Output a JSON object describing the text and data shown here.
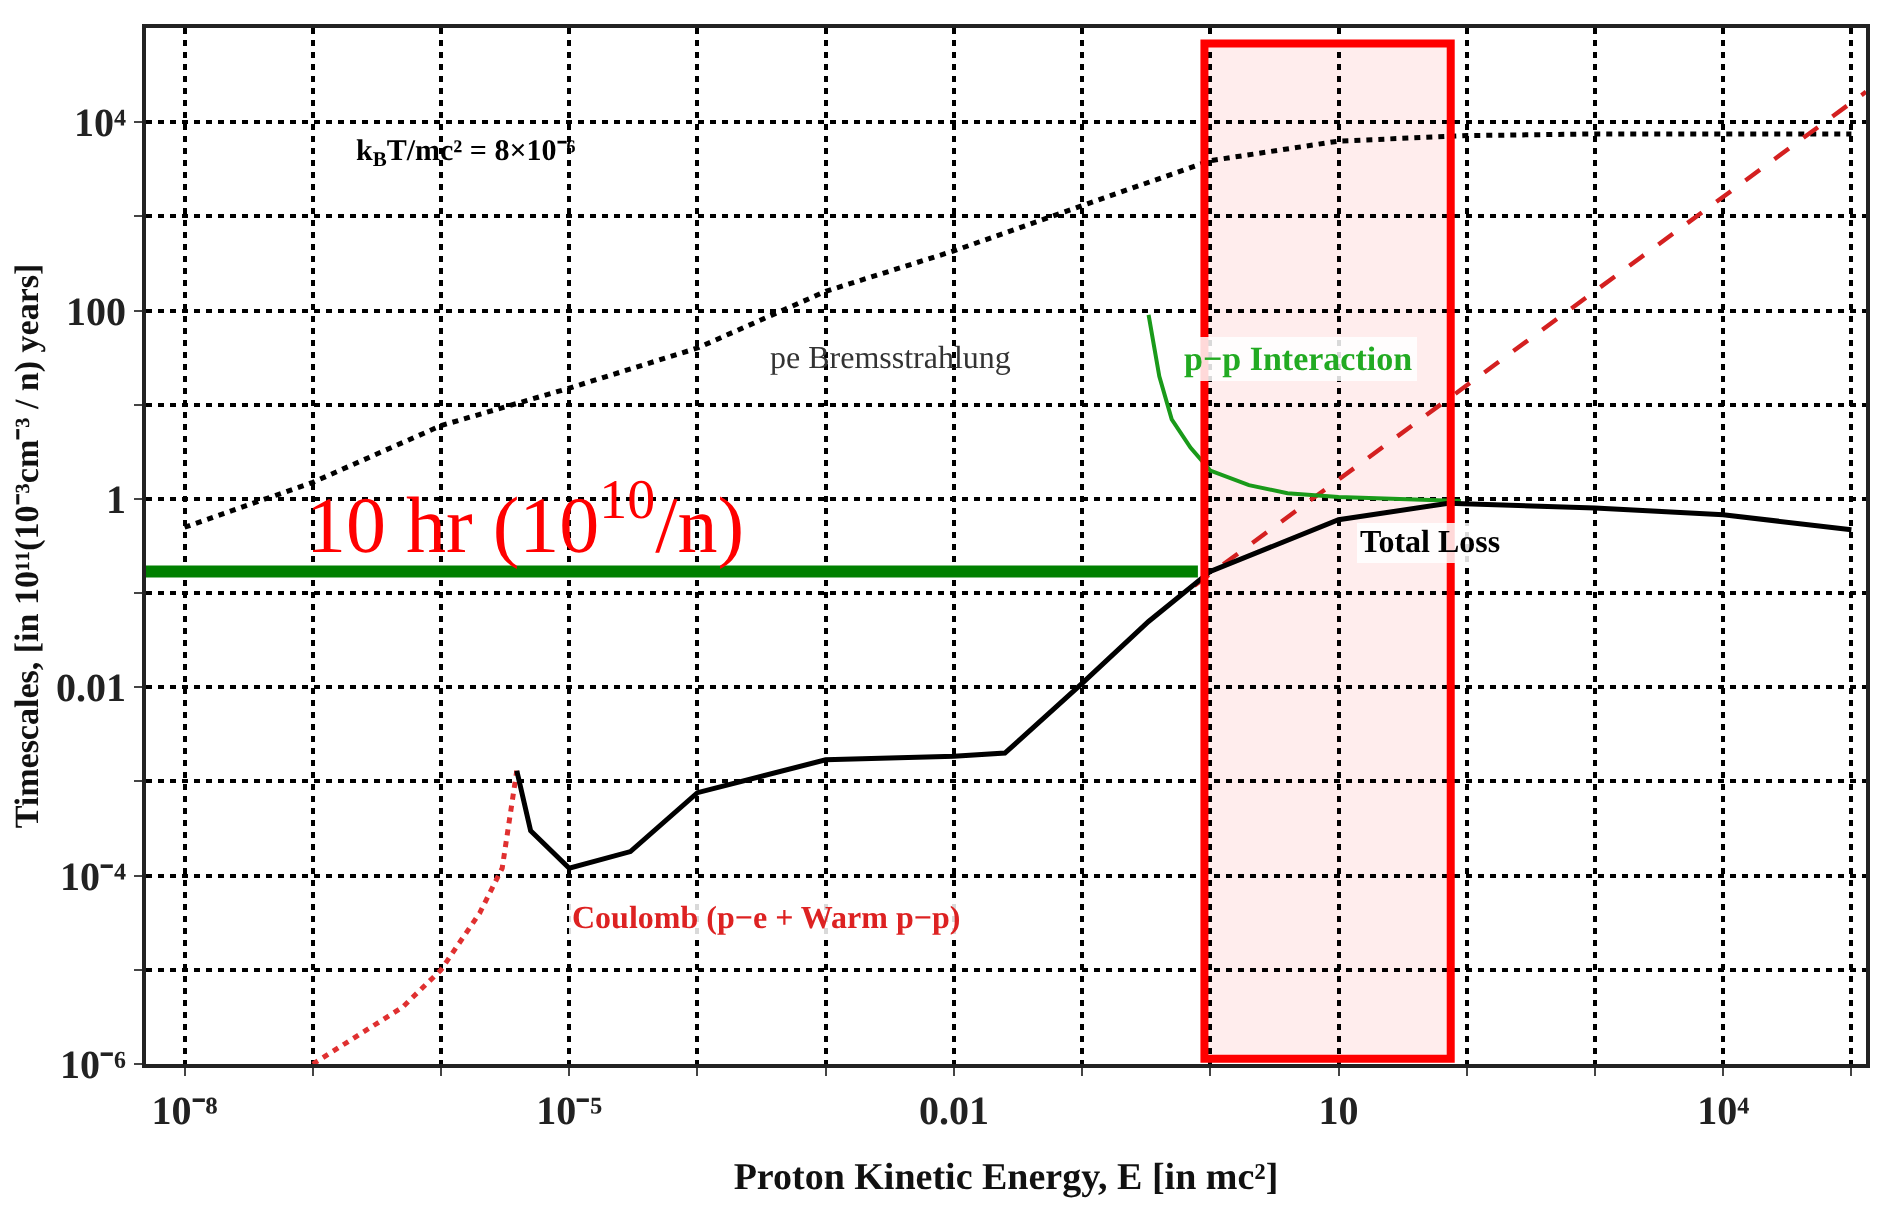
{
  "chart_data": {
    "type": "line",
    "xlabel": "Proton Kinetic Energy, E [in mc²]",
    "ylabel": "Timescales, [in 10¹¹(10⁻³cm⁻³ / n) years]",
    "log": "xy",
    "grid": true,
    "xlim": [
      5e-09,
      130000
    ],
    "ylim": [
      1e-06,
      100000
    ],
    "xticks": [
      {
        "value": 1e-08,
        "label": "10⁻⁸"
      },
      {
        "value": 1e-07,
        "label": null
      },
      {
        "value": 1e-06,
        "label": null
      },
      {
        "value": 1e-05,
        "label": "10⁻⁵"
      },
      {
        "value": 0.0001,
        "label": null
      },
      {
        "value": 0.001,
        "label": null
      },
      0.01,
      {
        "value": 0.1,
        "label": null
      },
      {
        "value": 1,
        "label": null
      },
      10,
      {
        "value": 100,
        "label": null
      },
      {
        "value": 1000,
        "label": null
      },
      {
        "value": 10000,
        "label": "10⁴"
      },
      {
        "value": 100000,
        "label": null
      }
    ],
    "yticks": [
      {
        "value": 1e-06,
        "label": "10⁻⁶"
      },
      {
        "value": 1e-05,
        "label": null
      },
      {
        "value": 0.0001,
        "label": "10⁻⁴"
      },
      {
        "value": 0.001,
        "label": null
      },
      0.01,
      {
        "value": 0.1,
        "label": null
      },
      1,
      {
        "value": 10,
        "label": null
      },
      100,
      {
        "value": 1000,
        "label": null
      },
      {
        "value": 10000,
        "label": "10⁴"
      }
    ],
    "series": [
      {
        "color": "#000000",
        "line_style": "dotted",
        "x": [
          1e-08,
          1e-07,
          1e-06,
          1e-05,
          0.0001,
          0.001,
          0.01,
          0.1,
          1,
          10,
          100,
          1000,
          10000,
          100000
        ],
        "values": [
          0.5,
          1.5,
          6,
          15,
          40,
          160,
          430,
          1300,
          3900,
          6300,
          7200,
          7500,
          7500,
          7500
        ]
      },
      {
        "color": "#e03030",
        "line_style": "dotted",
        "x": [
          1e-07,
          5e-07,
          1e-06,
          2e-06,
          3e-06,
          3.9e-06
        ],
        "values": [
          1e-06,
          4e-06,
          1e-05,
          4e-05,
          0.00012,
          0.0013
        ]
      },
      {
        "color": "#d42020",
        "line_style": "dashed",
        "x": [
          0.75,
          130000
        ],
        "values": [
          0.12,
          21000
        ]
      },
      {
        "color": "#1a9a1a",
        "line_style": "solid",
        "x": [
          0.33,
          0.4,
          0.5,
          0.7,
          1,
          2,
          4,
          10,
          30,
          90
        ],
        "values": [
          90,
          20,
          7,
          3.5,
          2,
          1.4,
          1.15,
          1.05,
          1.0,
          0.95
        ]
      },
      {
        "color": "#000000",
        "line_style": "solid",
        "x": [
          3.9e-06,
          5e-06,
          1e-05,
          3e-05,
          0.0001,
          0.001,
          0.01,
          0.025,
          0.1,
          0.33,
          1,
          10,
          72,
          1000,
          10000,
          100000
        ],
        "values": [
          0.0013,
          0.0003,
          0.00012,
          0.00018,
          0.00076,
          0.0017,
          0.00185,
          0.002,
          0.011,
          0.05,
          0.17,
          0.6,
          0.9,
          0.8,
          0.68,
          0.47
        ]
      },
      {
        "color": "#008000",
        "line_style": "solid",
        "x": [
          5e-09,
          0.8
        ],
        "values": [
          0.17,
          0.17
        ]
      }
    ],
    "bands": [
      {
        "axis": "x",
        "from": 0.9,
        "to": 75,
        "color": "#ff0000"
      }
    ],
    "annotations": [
      "k$_{B}$T/mc² = 8×10⁻⁶",
      "pe Bremsstrahlung",
      "p−p Interaction",
      "Total Loss",
      "Coulomb (p−e + Warm p−p)",
      "10 hr (10$^{10}$/n)"
    ]
  }
}
